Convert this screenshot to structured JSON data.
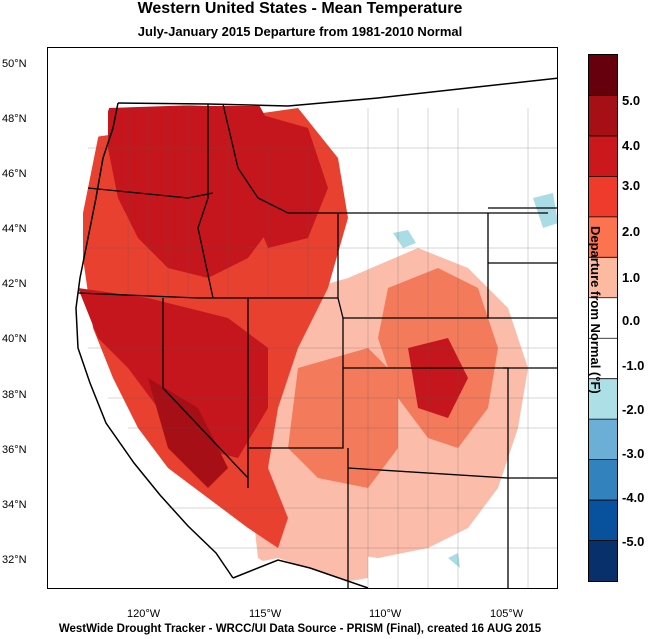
{
  "title": "Western United States - Mean Temperature",
  "subtitle": "July-January 2015  Departure from 1981-2010 Normal",
  "footer": "WestWide Drought Tracker - WRCC/UI  Data Source - PRISM (Final), created 16 AUG 2015",
  "lat_labels": [
    "50°N",
    "48°N",
    "46°N",
    "44°N",
    "42°N",
    "40°N",
    "38°N",
    "36°N",
    "34°N",
    "32°N"
  ],
  "lon_labels": [
    "120°W",
    "115°W",
    "110°W",
    "105°W"
  ],
  "colorbar": {
    "title": "Departure from Normal (°F)",
    "labels": [
      "5.0",
      "4.0",
      "3.0",
      "2.0",
      "1.0",
      "0.0",
      "-1.0",
      "-2.0",
      "-3.0",
      "-4.0",
      "-5.0"
    ],
    "colors": [
      "#67000d",
      "#a50f15",
      "#cb181d",
      "#ef3b2c",
      "#fc7350",
      "#fcbba1",
      "#ffffff",
      "#ffffff",
      "#ace0e6",
      "#6baed6",
      "#3182bd",
      "#08519c",
      "#08306b"
    ]
  },
  "map_colors": {
    "strong_warm": "#c4161c",
    "warm": "#e8412f",
    "mild_warm": "#f47a5c",
    "slight_warm": "#fbbcaa",
    "neutral": "#ffffff",
    "cool": "#a9dce4",
    "ocean": "#ffffff"
  }
}
